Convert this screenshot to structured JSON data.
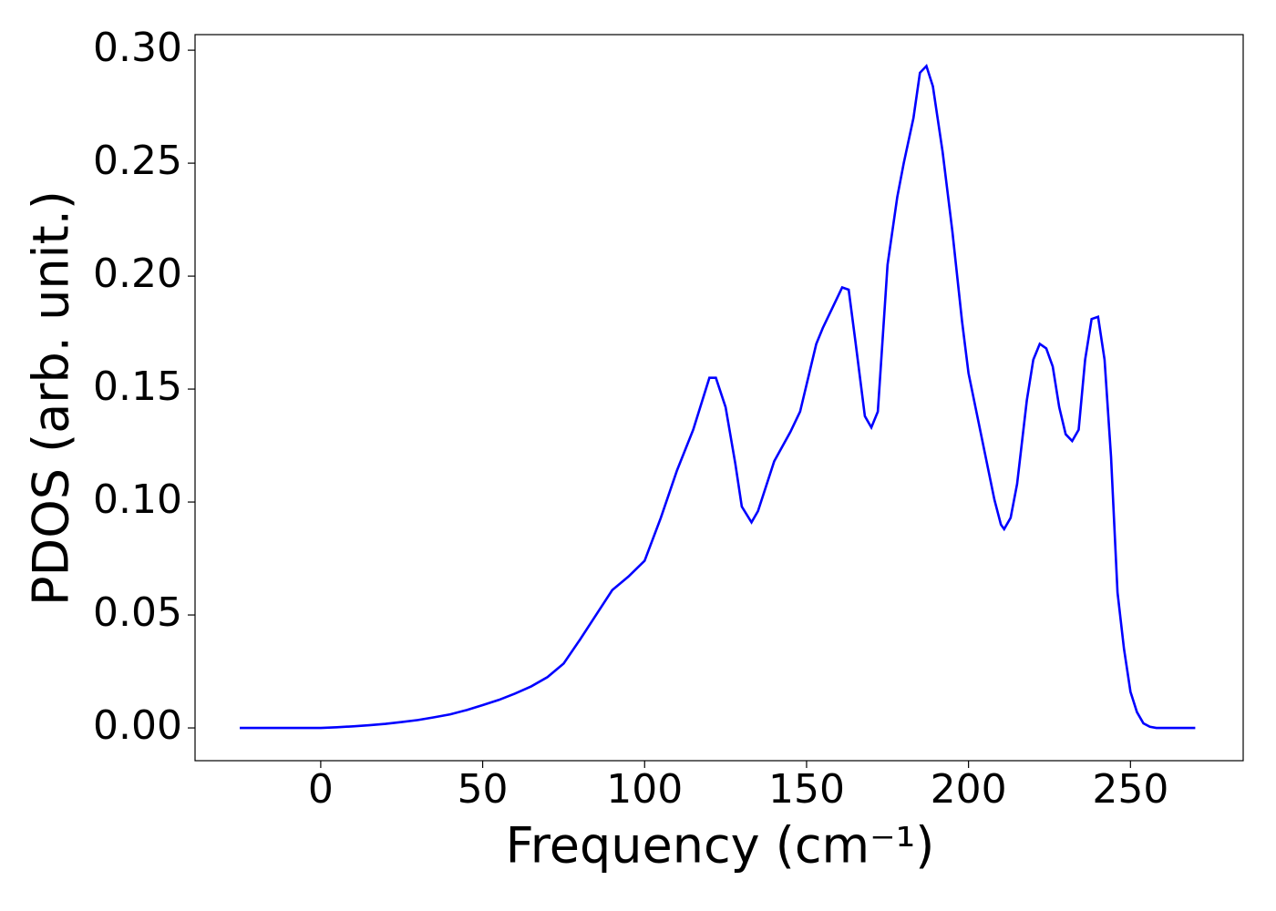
{
  "chart_data": {
    "type": "line",
    "xlabel": "Frequency (cm⁻¹)",
    "ylabel": "PDOS (arb. unit.)",
    "x": [
      -25,
      -20,
      -15,
      -10,
      -5,
      0,
      5,
      10,
      15,
      20,
      25,
      30,
      35,
      40,
      45,
      50,
      55,
      60,
      65,
      70,
      75,
      80,
      85,
      90,
      95,
      100,
      105,
      110,
      115,
      120,
      122,
      125,
      128,
      130,
      133,
      135,
      140,
      145,
      148,
      150,
      153,
      155,
      158,
      161,
      163,
      165,
      168,
      170,
      172,
      175,
      178,
      180,
      183,
      185,
      187,
      189,
      192,
      195,
      198,
      200,
      205,
      208,
      210,
      211,
      213,
      215,
      218,
      220,
      222,
      224,
      226,
      228,
      230,
      232,
      234,
      236,
      238,
      240,
      242,
      244,
      246,
      248,
      250,
      252,
      254,
      256,
      258,
      260,
      265,
      270
    ],
    "series": [
      {
        "name": "PDOS",
        "color": "#0000ff",
        "values": [
          0,
          0,
          0,
          0,
          0,
          0,
          0.0003,
          0.0007,
          0.0012,
          0.0018,
          0.0026,
          0.0035,
          0.0047,
          0.006,
          0.0079,
          0.0101,
          0.0124,
          0.0152,
          0.0184,
          0.0225,
          0.0285,
          0.039,
          0.05,
          0.061,
          0.067,
          0.074,
          0.093,
          0.114,
          0.132,
          0.155,
          0.155,
          0.142,
          0.117,
          0.098,
          0.091,
          0.096,
          0.118,
          0.131,
          0.14,
          0.152,
          0.17,
          0.177,
          0.186,
          0.195,
          0.194,
          0.172,
          0.138,
          0.133,
          0.14,
          0.205,
          0.235,
          0.25,
          0.27,
          0.29,
          0.293,
          0.284,
          0.255,
          0.22,
          0.18,
          0.157,
          0.122,
          0.101,
          0.09,
          0.088,
          0.093,
          0.108,
          0.145,
          0.163,
          0.17,
          0.168,
          0.16,
          0.142,
          0.13,
          0.127,
          0.132,
          0.163,
          0.181,
          0.182,
          0.163,
          0.12,
          0.06,
          0.035,
          0.016,
          0.007,
          0.002,
          0.0005,
          0,
          0,
          0,
          0
        ]
      }
    ],
    "xlim": [
      -38.8,
      284.8
    ],
    "ylim": [
      -0.0145,
      0.3069
    ],
    "xticks": [
      0,
      50,
      100,
      150,
      200,
      250
    ],
    "yticks": [
      {
        "value": 0,
        "label": "0.00"
      },
      {
        "value": 0.05,
        "label": "0.05"
      },
      {
        "value": 0.1,
        "label": "0.10"
      },
      {
        "value": 0.15,
        "label": "0.15"
      },
      {
        "value": 0.2,
        "label": "0.20"
      },
      {
        "value": 0.25,
        "label": "0.25"
      },
      {
        "value": 0.3,
        "label": "0.30"
      }
    ]
  }
}
